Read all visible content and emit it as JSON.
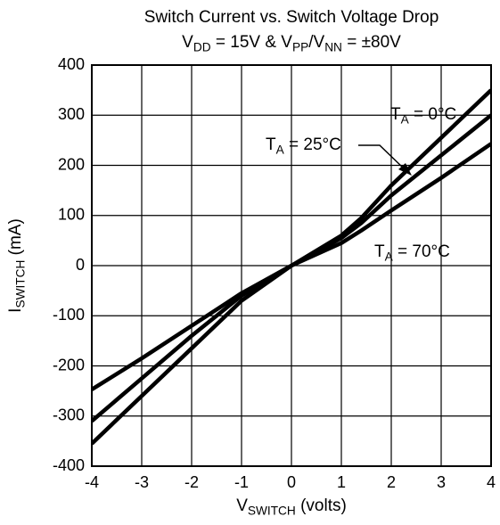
{
  "chart_data": {
    "type": "line",
    "title": "Switch Current vs. Switch Voltage Drop",
    "subtitle": [
      "V",
      "DD",
      " = 15V & V",
      "PP",
      "/V",
      "NN",
      " = ±80V"
    ],
    "x_label": [
      "V",
      "SWITCH",
      " (volts)"
    ],
    "y_label": [
      "I",
      "SWITCH",
      " (mA)"
    ],
    "x": [
      -4,
      -3,
      -2,
      -1,
      0,
      1,
      1.4,
      2,
      3,
      4
    ],
    "series": [
      {
        "name": [
          "T",
          "A",
          " = 0°C"
        ],
        "color": "#000000",
        "values": [
          -355,
          -260,
          -165,
          -70,
          0,
          60,
          95,
          160,
          255,
          350
        ]
      },
      {
        "name": [
          "T",
          "A",
          " = 25°C"
        ],
        "color": "#000000",
        "values": [
          -310,
          -225,
          -140,
          -60,
          0,
          55,
          85,
          140,
          220,
          300
        ]
      },
      {
        "name": [
          "T",
          "A",
          " = 70°C"
        ],
        "color": "#000000",
        "values": [
          -247,
          -185,
          -120,
          -55,
          0,
          45,
          70,
          110,
          175,
          243
        ]
      }
    ],
    "xlim": [
      -4,
      4
    ],
    "xticks": [
      -4,
      -3,
      -2,
      -1,
      0,
      1,
      2,
      3,
      4
    ],
    "ylim": [
      -400,
      400
    ],
    "yticks": [
      -400,
      -300,
      -200,
      -100,
      0,
      100,
      200,
      300,
      400
    ],
    "grid": true
  }
}
